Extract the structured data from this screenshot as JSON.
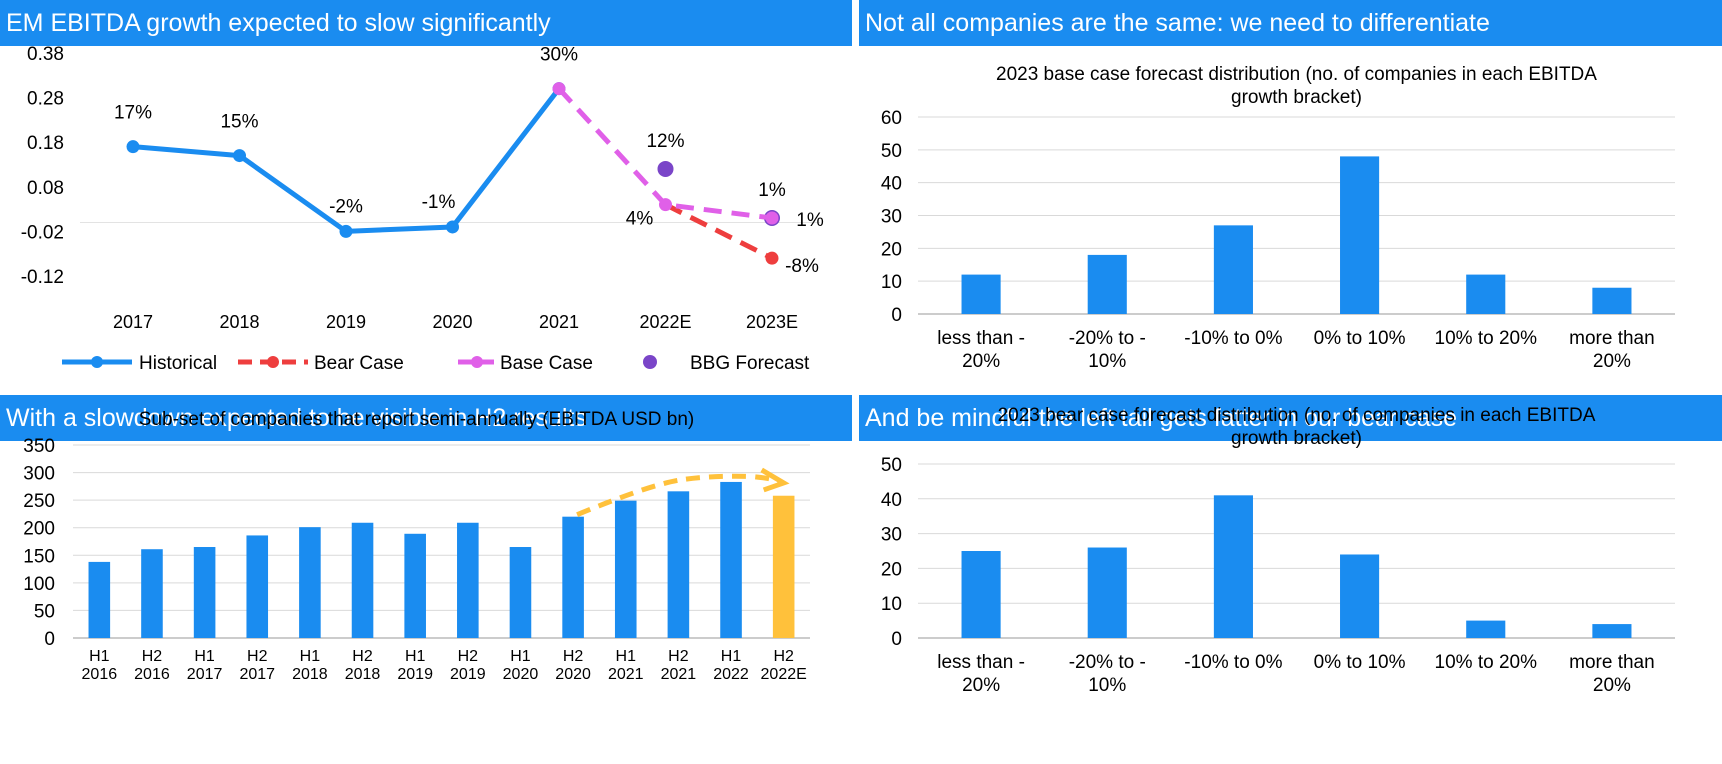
{
  "panels": {
    "top_left_title": "EM EBITDA growth expected to slow significantly",
    "top_right_title": "Not all companies are the same: we need to differentiate",
    "bottom_left_title": "With a slowdown expected to be visible in H2 results",
    "bottom_right_title": "And be mindful the left tail gets fatter in our bear case"
  },
  "colors": {
    "header_bg": "#1a8cf0",
    "bar": "#1a8cf0",
    "historical": "#1a8cf0",
    "bear": "#ee3e3e",
    "base": "#e060e8",
    "bbg": "#7a45c8",
    "highlight": "#ffc13b"
  },
  "chart_data": [
    {
      "type": "line",
      "title": "",
      "x": [
        "2017",
        "2018",
        "2019",
        "2020",
        "2021",
        "2022E",
        "2023E"
      ],
      "ylim": [
        -0.12,
        0.38
      ],
      "yticks": [
        "0.38",
        "0.28",
        "0.18",
        "0.08",
        "-0.02",
        "-0.12"
      ],
      "grid": false,
      "legend_position": "bottom",
      "series": [
        {
          "name": "Historical",
          "values": [
            0.17,
            0.15,
            -0.02,
            -0.01,
            0.3,
            null,
            null
          ],
          "labels": [
            "17%",
            "15%",
            "-2%",
            "-1%",
            "30%",
            "",
            ""
          ]
        },
        {
          "name": "Bear Case",
          "values": [
            null,
            null,
            null,
            null,
            null,
            0.04,
            -0.08
          ],
          "labels": [
            "",
            "",
            "",
            "",
            "",
            "",
            "-8%"
          ]
        },
        {
          "name": "Base Case",
          "values": [
            null,
            null,
            null,
            null,
            0.3,
            0.04,
            0.01
          ],
          "labels": [
            "",
            "",
            "",
            "",
            "",
            "4%",
            "1%"
          ]
        },
        {
          "name": "BBG Forecast",
          "values": [
            null,
            null,
            null,
            null,
            null,
            0.12,
            0.01
          ],
          "labels": [
            "",
            "",
            "",
            "",
            "",
            "12%",
            "1%"
          ]
        }
      ]
    },
    {
      "type": "bar",
      "title": "2023 base case forecast distribution (no. of companies in each EBITDA growth bracket)",
      "title_lines": [
        "2023 base case forecast distribution (no. of companies in each EBITDA",
        "growth bracket)"
      ],
      "categories": [
        [
          "less than -",
          "20%"
        ],
        [
          "-20% to -",
          "10%"
        ],
        [
          "-10% to 0%"
        ],
        [
          "0% to 10%"
        ],
        [
          "10% to 20%"
        ],
        [
          "more than",
          "20%"
        ]
      ],
      "values": [
        12,
        18,
        27,
        48,
        12,
        8
      ],
      "ylim": [
        0,
        60
      ],
      "yticks": [
        "0",
        "10",
        "20",
        "30",
        "40",
        "50",
        "60"
      ],
      "grid": true
    },
    {
      "type": "bar",
      "title": "Sub-set of companies that report semi-annually (EBITDA USD bn)",
      "categories": [
        [
          "H1",
          "2016"
        ],
        [
          "H2",
          "2016"
        ],
        [
          "H1",
          "2017"
        ],
        [
          "H2",
          "2017"
        ],
        [
          "H1",
          "2018"
        ],
        [
          "H2",
          "2018"
        ],
        [
          "H1",
          "2019"
        ],
        [
          "H2",
          "2019"
        ],
        [
          "H1",
          "2020"
        ],
        [
          "H2",
          "2020"
        ],
        [
          "H1",
          "2021"
        ],
        [
          "H2",
          "2021"
        ],
        [
          "H1",
          "2022"
        ],
        [
          "H2",
          "2022E"
        ]
      ],
      "values": [
        138,
        161,
        165,
        186,
        201,
        209,
        189,
        209,
        165,
        220,
        249,
        266,
        283,
        258
      ],
      "highlight_index": 13,
      "ylim": [
        0,
        350
      ],
      "yticks": [
        "0",
        "50",
        "100",
        "150",
        "200",
        "250",
        "300",
        "350"
      ],
      "grid": true
    },
    {
      "type": "bar",
      "title": "2023 bear case forecast distribution (no. of companies in each EBITDA growth bracket)",
      "title_lines": [
        "2023 bear case forecast distribution (no. of companies in each EBITDA",
        "growth bracket)"
      ],
      "categories": [
        [
          "less than -",
          "20%"
        ],
        [
          "-20% to -",
          "10%"
        ],
        [
          "-10% to 0%"
        ],
        [
          "0% to 10%"
        ],
        [
          "10% to 20%"
        ],
        [
          "more than",
          "20%"
        ]
      ],
      "values": [
        25,
        26,
        41,
        24,
        5,
        4
      ],
      "ylim": [
        0,
        50
      ],
      "yticks": [
        "0",
        "10",
        "20",
        "30",
        "40",
        "50"
      ],
      "grid": true
    }
  ]
}
